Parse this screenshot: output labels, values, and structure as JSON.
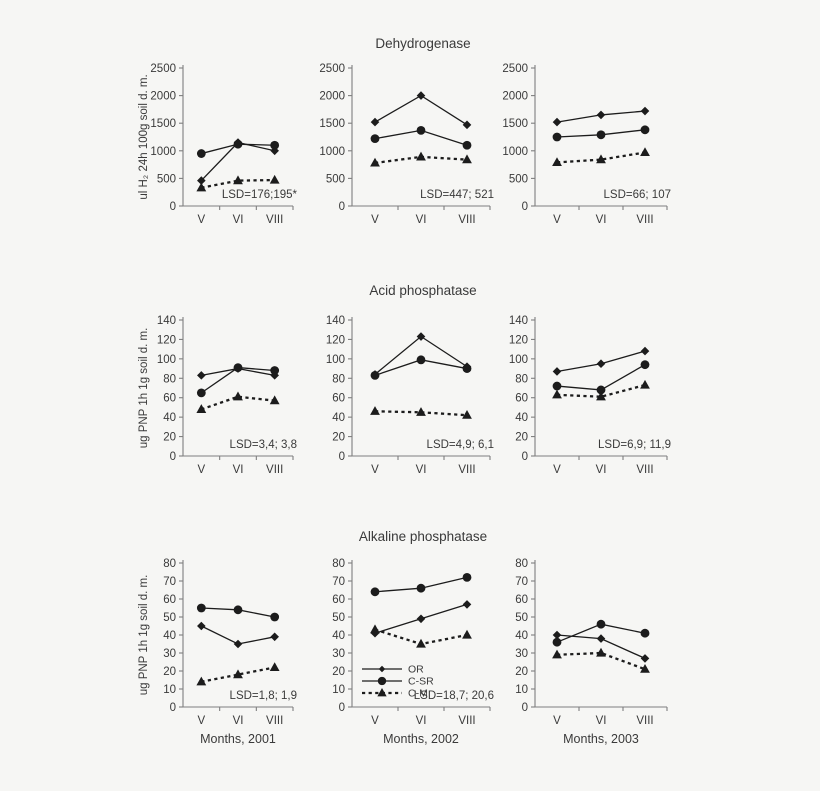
{
  "figure": {
    "background": "#f6f6f4",
    "axis_color": "#7f7f7f",
    "series_color": "#1c1c1c",
    "text_color": "#3a3a3a",
    "row_titles": [
      "Dehydrogenase",
      "Acid phosphatase",
      "Alkaline phosphatase"
    ]
  },
  "legend": {
    "position": "inside-bottom-left-of-2002-alkaline-chart",
    "items": [
      {
        "label": "OR",
        "marker": "diamond",
        "line": "solid"
      },
      {
        "label": "C-SR",
        "marker": "circle",
        "line": "solid"
      },
      {
        "label": "C-M",
        "marker": "triangle",
        "line": "dashed"
      }
    ]
  },
  "chart_data": [
    {
      "type": "line",
      "title": "Dehydrogenase",
      "ylabel": "ul H₂ 24h 100g soil d. m.",
      "xlabel": "",
      "ylim": [
        0,
        2500
      ],
      "yticks": [
        0,
        500,
        1000,
        1500,
        2000,
        2500
      ],
      "categories": [
        "V",
        "VI",
        "VIII"
      ],
      "series": [
        {
          "name": "OR",
          "marker": "diamond",
          "dash": false,
          "values": [
            460,
            1150,
            1000
          ]
        },
        {
          "name": "C-SR",
          "marker": "circle",
          "dash": false,
          "values": [
            950,
            1120,
            1100
          ]
        },
        {
          "name": "C-M",
          "marker": "triangle",
          "dash": true,
          "values": [
            330,
            460,
            470
          ]
        }
      ],
      "lsd": "LSD=176;195*",
      "show_legend": false
    },
    {
      "type": "line",
      "title": "Dehydrogenase",
      "ylabel": "",
      "xlabel": "",
      "ylim": [
        0,
        2500
      ],
      "yticks": [
        0,
        500,
        1000,
        1500,
        2000,
        2500
      ],
      "categories": [
        "V",
        "VI",
        "VIII"
      ],
      "series": [
        {
          "name": "OR",
          "marker": "diamond",
          "dash": false,
          "values": [
            1520,
            2000,
            1470
          ]
        },
        {
          "name": "C-SR",
          "marker": "circle",
          "dash": false,
          "values": [
            1220,
            1370,
            1100
          ]
        },
        {
          "name": "C-M",
          "marker": "triangle",
          "dash": true,
          "values": [
            780,
            890,
            840
          ]
        }
      ],
      "lsd": "LSD=447; 521",
      "show_legend": false
    },
    {
      "type": "line",
      "title": "Dehydrogenase",
      "ylabel": "",
      "xlabel": "",
      "ylim": [
        0,
        2500
      ],
      "yticks": [
        0,
        500,
        1000,
        1500,
        2000,
        2500
      ],
      "categories": [
        "V",
        "VI",
        "VIII"
      ],
      "series": [
        {
          "name": "OR",
          "marker": "diamond",
          "dash": false,
          "values": [
            1520,
            1650,
            1720
          ]
        },
        {
          "name": "C-SR",
          "marker": "circle",
          "dash": false,
          "values": [
            1250,
            1290,
            1380
          ]
        },
        {
          "name": "C-M",
          "marker": "triangle",
          "dash": true,
          "values": [
            790,
            840,
            970
          ]
        }
      ],
      "lsd": "LSD=66; 107",
      "show_legend": false
    },
    {
      "type": "line",
      "title": "Acid phosphatase",
      "ylabel": "ug PNP 1h 1g soil d. m.",
      "xlabel": "",
      "ylim": [
        0,
        140
      ],
      "yticks": [
        0,
        20,
        40,
        60,
        80,
        100,
        120,
        140
      ],
      "categories": [
        "V",
        "VI",
        "VIII"
      ],
      "series": [
        {
          "name": "OR",
          "marker": "diamond",
          "dash": false,
          "values": [
            83,
            90,
            83
          ]
        },
        {
          "name": "C-SR",
          "marker": "circle",
          "dash": false,
          "values": [
            65,
            91,
            88
          ]
        },
        {
          "name": "C-M",
          "marker": "triangle",
          "dash": true,
          "values": [
            48,
            61,
            57
          ]
        }
      ],
      "lsd": "LSD=3,4; 3,8",
      "show_legend": false
    },
    {
      "type": "line",
      "title": "Acid phosphatase",
      "ylabel": "",
      "xlabel": "",
      "ylim": [
        0,
        140
      ],
      "yticks": [
        0,
        20,
        40,
        60,
        80,
        100,
        120,
        140
      ],
      "categories": [
        "V",
        "VI",
        "VIII"
      ],
      "series": [
        {
          "name": "OR",
          "marker": "diamond",
          "dash": false,
          "values": [
            84,
            123,
            92
          ]
        },
        {
          "name": "C-SR",
          "marker": "circle",
          "dash": false,
          "values": [
            83,
            99,
            90
          ]
        },
        {
          "name": "C-M",
          "marker": "triangle",
          "dash": true,
          "values": [
            46,
            45,
            42
          ]
        }
      ],
      "lsd": "LSD=4,9; 6,1",
      "show_legend": false
    },
    {
      "type": "line",
      "title": "Acid phosphatase",
      "ylabel": "",
      "xlabel": "",
      "ylim": [
        0,
        140
      ],
      "yticks": [
        0,
        20,
        40,
        60,
        80,
        100,
        120,
        140
      ],
      "categories": [
        "V",
        "VI",
        "VIII"
      ],
      "series": [
        {
          "name": "OR",
          "marker": "diamond",
          "dash": false,
          "values": [
            87,
            95,
            108
          ]
        },
        {
          "name": "C-SR",
          "marker": "circle",
          "dash": false,
          "values": [
            72,
            68,
            94
          ]
        },
        {
          "name": "C-M",
          "marker": "triangle",
          "dash": true,
          "values": [
            63,
            61,
            73
          ]
        }
      ],
      "lsd": "LSD=6,9; 11,9",
      "show_legend": false
    },
    {
      "type": "line",
      "title": "Alkaline phosphatase",
      "ylabel": "ug PNP 1h 1g soil d. m.",
      "xlabel": "Months, 2001",
      "ylim": [
        0,
        80
      ],
      "yticks": [
        0,
        10,
        20,
        30,
        40,
        50,
        60,
        70,
        80
      ],
      "categories": [
        "V",
        "VI",
        "VIII"
      ],
      "series": [
        {
          "name": "OR",
          "marker": "diamond",
          "dash": false,
          "values": [
            45,
            35,
            39
          ]
        },
        {
          "name": "C-SR",
          "marker": "circle",
          "dash": false,
          "values": [
            55,
            54,
            50
          ]
        },
        {
          "name": "C-M",
          "marker": "triangle",
          "dash": true,
          "values": [
            14,
            18,
            22
          ]
        }
      ],
      "lsd": "LSD=1,8; 1,9",
      "show_legend": false
    },
    {
      "type": "line",
      "title": "Alkaline phosphatase",
      "ylabel": "",
      "xlabel": "Months, 2002",
      "ylim": [
        0,
        80
      ],
      "yticks": [
        0,
        10,
        20,
        30,
        40,
        50,
        60,
        70,
        80
      ],
      "categories": [
        "V",
        "VI",
        "VIII"
      ],
      "series": [
        {
          "name": "OR",
          "marker": "diamond",
          "dash": false,
          "values": [
            41,
            49,
            57
          ]
        },
        {
          "name": "C-SR",
          "marker": "circle",
          "dash": false,
          "values": [
            64,
            66,
            72
          ]
        },
        {
          "name": "C-M",
          "marker": "triangle",
          "dash": true,
          "values": [
            43,
            35,
            40
          ]
        }
      ],
      "lsd": "LSD=18,7; 20,6",
      "show_legend": true
    },
    {
      "type": "line",
      "title": "Alkaline phosphatase",
      "ylabel": "",
      "xlabel": "Months, 2003",
      "ylim": [
        0,
        80
      ],
      "yticks": [
        0,
        10,
        20,
        30,
        40,
        50,
        60,
        70,
        80
      ],
      "categories": [
        "V",
        "VI",
        "VIII"
      ],
      "series": [
        {
          "name": "OR",
          "marker": "diamond",
          "dash": false,
          "values": [
            40,
            38,
            27
          ]
        },
        {
          "name": "C-SR",
          "marker": "circle",
          "dash": false,
          "values": [
            36,
            46,
            41
          ]
        },
        {
          "name": "C-M",
          "marker": "triangle",
          "dash": true,
          "values": [
            29,
            30,
            21
          ]
        }
      ],
      "lsd": "",
      "show_legend": false
    }
  ]
}
